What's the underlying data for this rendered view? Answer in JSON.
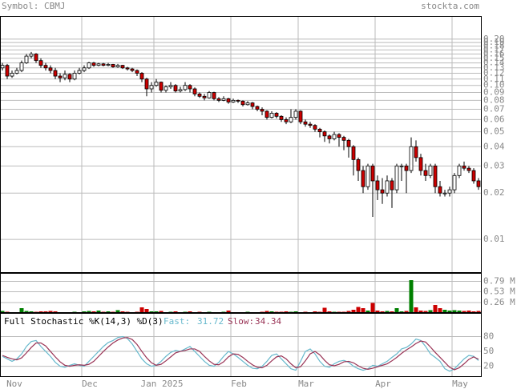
{
  "header": {
    "symbol": "Symbol: CBMJ",
    "site": "stockta.com"
  },
  "chart_data": [
    {
      "type": "candlestick",
      "categories": [
        "Nov",
        null,
        null,
        null,
        null,
        null,
        null,
        null,
        null,
        null,
        null,
        null,
        null,
        null,
        null,
        null,
        null,
        "Dec",
        null,
        null,
        null,
        null,
        null,
        null,
        null,
        null,
        null,
        null,
        null,
        null,
        null,
        null,
        "Jan 2025",
        null,
        null,
        null,
        null,
        null,
        null,
        null,
        null,
        null,
        null,
        null,
        null,
        null,
        null,
        null,
        "Feb",
        null,
        null,
        null,
        null,
        null,
        null,
        null,
        null,
        null,
        null,
        null,
        null,
        null,
        "Mar",
        null,
        null,
        null,
        null,
        null,
        null,
        null,
        null,
        null,
        null,
        null,
        null,
        null,
        null,
        null,
        "Apr",
        null,
        null,
        null,
        null,
        null,
        null,
        null,
        null,
        null,
        null,
        null,
        null,
        null,
        null,
        null,
        "May",
        null,
        null,
        null,
        null,
        null
      ],
      "open": [
        0.13,
        0.135,
        0.115,
        0.12,
        0.125,
        0.14,
        0.155,
        0.16,
        0.145,
        0.135,
        0.13,
        0.125,
        0.115,
        0.112,
        0.118,
        0.11,
        0.12,
        0.125,
        0.13,
        0.14,
        0.135,
        0.138,
        0.135,
        0.137,
        0.132,
        0.135,
        0.13,
        0.128,
        0.125,
        0.12,
        0.11,
        0.095,
        0.1,
        0.105,
        0.093,
        0.098,
        0.1,
        0.092,
        0.094,
        0.1,
        0.095,
        0.088,
        0.085,
        0.083,
        0.09,
        0.082,
        0.08,
        0.082,
        0.078,
        0.08,
        0.079,
        0.075,
        0.077,
        0.073,
        0.07,
        0.068,
        0.062,
        0.066,
        0.063,
        0.06,
        0.058,
        0.062,
        0.068,
        0.058,
        0.056,
        0.055,
        0.052,
        0.05,
        0.047,
        0.045,
        0.048,
        0.046,
        0.044,
        0.04,
        0.033,
        0.028,
        0.022,
        0.03,
        0.024,
        0.021,
        0.02,
        0.024,
        0.021,
        0.03,
        0.03,
        0.028,
        0.04,
        0.034,
        0.028,
        0.026,
        0.03,
        0.022,
        0.02,
        0.02,
        0.021,
        0.026,
        0.03,
        0.029,
        0.028,
        0.024
      ],
      "high": [
        0.14,
        0.138,
        0.125,
        0.13,
        0.145,
        0.16,
        0.165,
        0.162,
        0.15,
        0.14,
        0.135,
        0.13,
        0.12,
        0.125,
        0.12,
        0.125,
        0.13,
        0.135,
        0.142,
        0.142,
        0.14,
        0.14,
        0.14,
        0.138,
        0.138,
        0.136,
        0.132,
        0.13,
        0.127,
        0.122,
        0.112,
        0.105,
        0.11,
        0.106,
        0.1,
        0.105,
        0.102,
        0.098,
        0.105,
        0.102,
        0.097,
        0.09,
        0.088,
        0.092,
        0.091,
        0.084,
        0.085,
        0.083,
        0.082,
        0.081,
        0.08,
        0.079,
        0.078,
        0.074,
        0.072,
        0.069,
        0.068,
        0.067,
        0.064,
        0.062,
        0.07,
        0.07,
        0.069,
        0.06,
        0.058,
        0.056,
        0.053,
        0.051,
        0.048,
        0.05,
        0.049,
        0.047,
        0.045,
        0.041,
        0.034,
        0.03,
        0.031,
        0.031,
        0.026,
        0.025,
        0.026,
        0.025,
        0.031,
        0.031,
        0.031,
        0.046,
        0.044,
        0.036,
        0.031,
        0.031,
        0.031,
        0.024,
        0.021,
        0.022,
        0.027,
        0.031,
        0.032,
        0.03,
        0.029,
        0.025
      ],
      "low": [
        0.125,
        0.11,
        0.112,
        0.118,
        0.122,
        0.138,
        0.15,
        0.14,
        0.13,
        0.125,
        0.12,
        0.11,
        0.105,
        0.108,
        0.105,
        0.108,
        0.118,
        0.122,
        0.128,
        0.132,
        0.133,
        0.133,
        0.133,
        0.13,
        0.13,
        0.128,
        0.125,
        0.122,
        0.115,
        0.105,
        0.085,
        0.09,
        0.098,
        0.09,
        0.09,
        0.095,
        0.09,
        0.09,
        0.092,
        0.09,
        0.085,
        0.083,
        0.08,
        0.082,
        0.08,
        0.078,
        0.079,
        0.076,
        0.077,
        0.077,
        0.073,
        0.074,
        0.07,
        0.068,
        0.064,
        0.06,
        0.061,
        0.061,
        0.058,
        0.056,
        0.057,
        0.06,
        0.056,
        0.054,
        0.053,
        0.05,
        0.046,
        0.043,
        0.042,
        0.044,
        0.04,
        0.038,
        0.034,
        0.026,
        0.024,
        0.02,
        0.021,
        0.014,
        0.018,
        0.017,
        0.019,
        0.016,
        0.02,
        0.024,
        0.02,
        0.027,
        0.032,
        0.026,
        0.024,
        0.025,
        0.02,
        0.019,
        0.019,
        0.019,
        0.02,
        0.025,
        0.028,
        0.027,
        0.023,
        0.021
      ],
      "close": [
        0.135,
        0.115,
        0.12,
        0.125,
        0.14,
        0.155,
        0.16,
        0.145,
        0.135,
        0.13,
        0.125,
        0.115,
        0.112,
        0.118,
        0.11,
        0.12,
        0.125,
        0.13,
        0.14,
        0.135,
        0.138,
        0.135,
        0.137,
        0.132,
        0.135,
        0.13,
        0.128,
        0.125,
        0.12,
        0.11,
        0.095,
        0.1,
        0.105,
        0.093,
        0.098,
        0.1,
        0.092,
        0.094,
        0.1,
        0.095,
        0.088,
        0.085,
        0.083,
        0.09,
        0.082,
        0.08,
        0.082,
        0.078,
        0.08,
        0.079,
        0.075,
        0.077,
        0.073,
        0.07,
        0.068,
        0.062,
        0.066,
        0.063,
        0.06,
        0.058,
        0.062,
        0.068,
        0.058,
        0.056,
        0.055,
        0.052,
        0.05,
        0.047,
        0.045,
        0.048,
        0.046,
        0.044,
        0.04,
        0.033,
        0.028,
        0.022,
        0.03,
        0.024,
        0.021,
        0.02,
        0.024,
        0.021,
        0.03,
        0.03,
        0.028,
        0.04,
        0.034,
        0.028,
        0.026,
        0.03,
        0.022,
        0.02,
        0.02,
        0.021,
        0.026,
        0.03,
        0.029,
        0.028,
        0.024,
        0.022
      ],
      "log_scale": true,
      "grid": true,
      "up_color": "#ffffff",
      "down_color": "#cc0000",
      "ylim": [
        0.00613,
        0.279
      ],
      "yticks": [
        {
          "value": 0.2,
          "label": "0.20"
        },
        0.19,
        0.18,
        0.17,
        0.16,
        0.15,
        0.14,
        0.13,
        0.12,
        0.11,
        {
          "value": 0.1,
          "label": "0.10"
        },
        0.09,
        0.08,
        0.07,
        0.06,
        0.05,
        0.04,
        0.03,
        0.02,
        0.01
      ]
    },
    {
      "type": "bar",
      "values": [
        0.05,
        0.03,
        0.02,
        0.02,
        0.12,
        0.05,
        0.04,
        0.03,
        0.04,
        0.04,
        0.05,
        0.04,
        0.02,
        0.02,
        0.02,
        0.03,
        0.02,
        0.04,
        0.05,
        0.04,
        0.06,
        0.03,
        0.04,
        0.03,
        0.07,
        0.04,
        0.03,
        0.02,
        0.03,
        0.14,
        0.1,
        0.04,
        0.04,
        0.05,
        0.02,
        0.03,
        0.04,
        0.02,
        0.03,
        0.04,
        0.02,
        0.03,
        0.02,
        0.03,
        0.02,
        0.02,
        0.03,
        0.06,
        0.02,
        0.02,
        0.02,
        0.03,
        0.02,
        0.02,
        0.03,
        0.05,
        0.04,
        0.03,
        0.03,
        0.04,
        0.03,
        0.04,
        0.02,
        0.03,
        0.02,
        0.04,
        0.03,
        0.13,
        0.04,
        0.03,
        0.03,
        0.03,
        0.05,
        0.08,
        0.15,
        0.12,
        0.06,
        0.25,
        0.06,
        0.04,
        0.05,
        0.04,
        0.12,
        0.04,
        0.05,
        0.82,
        0.14,
        0.06,
        0.05,
        0.07,
        0.2,
        0.12,
        0.08,
        0.06,
        0.07,
        0.06,
        0.05,
        0.06,
        0.04,
        0.05
      ],
      "up_color": "#008000",
      "down_color": "#cc0000",
      "ylim": [
        0,
        0.98
      ],
      "yticks": [
        {
          "value": 0.79,
          "label": "0.79 M"
        },
        {
          "value": 0.53,
          "label": "0.53 M"
        },
        {
          "value": 0.26,
          "label": "0.26 M"
        }
      ]
    },
    {
      "type": "line",
      "title": "Full Stochastic %K(14,3) %D(3)",
      "series": [
        {
          "name": "Fast:",
          "color": "#66b8cc",
          "values": [
            40,
            35,
            30,
            35,
            45,
            60,
            70,
            72,
            60,
            50,
            40,
            28,
            20,
            18,
            22,
            25,
            22,
            20,
            30,
            40,
            50,
            60,
            68,
            72,
            78,
            80,
            76,
            65,
            50,
            35,
            25,
            20,
            22,
            30,
            40,
            48,
            52,
            50,
            55,
            60,
            50,
            40,
            30,
            22,
            20,
            28,
            40,
            50,
            45,
            38,
            30,
            22,
            16,
            15,
            20,
            30,
            42,
            45,
            35,
            25,
            15,
            12,
            30,
            50,
            55,
            45,
            30,
            20,
            18,
            25,
            30,
            32,
            28,
            20,
            15,
            12,
            15,
            22,
            20,
            25,
            30,
            38,
            45,
            55,
            58,
            65,
            75,
            72,
            60,
            45,
            38,
            30,
            15,
            10,
            15,
            25,
            35,
            42,
            40,
            31.72
          ]
        },
        {
          "name": "Slow:",
          "color": "#993355",
          "values": [
            42,
            38,
            35,
            33,
            37,
            47,
            58,
            67,
            67,
            61,
            50,
            39,
            29,
            22,
            20,
            22,
            23,
            22,
            24,
            30,
            40,
            50,
            59,
            67,
            73,
            77,
            78,
            74,
            64,
            50,
            37,
            27,
            22,
            24,
            31,
            39,
            47,
            50,
            52,
            55,
            55,
            50,
            40,
            31,
            24,
            23,
            29,
            39,
            45,
            44,
            38,
            30,
            23,
            18,
            17,
            22,
            31,
            39,
            41,
            35,
            25,
            17,
            19,
            31,
            45,
            50,
            43,
            32,
            23,
            21,
            24,
            29,
            30,
            27,
            21,
            16,
            14,
            16,
            19,
            22,
            25,
            31,
            38,
            46,
            53,
            59,
            66,
            71,
            69,
            59,
            48,
            38,
            28,
            18,
            13,
            17,
            25,
            34,
            39,
            34.34
          ]
        }
      ],
      "ylim": [
        0,
        126
      ],
      "yticks": [
        80,
        50,
        20
      ],
      "grid": true
    }
  ]
}
